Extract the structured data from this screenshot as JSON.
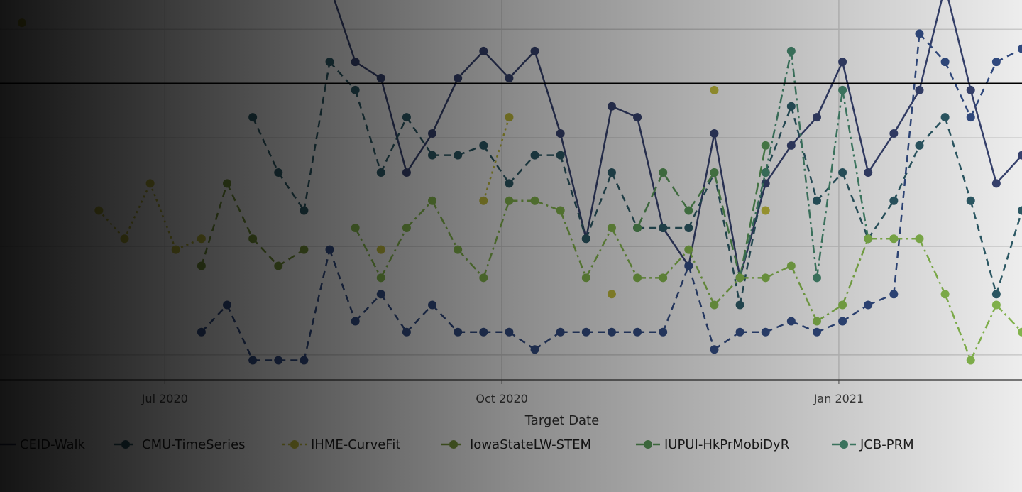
{
  "chart_data": {
    "type": "line",
    "title": "",
    "xlabel": "Target Date",
    "ylabel": "",
    "x_ticks": [
      {
        "date": "2020-07-01",
        "label": "Jul 2020"
      },
      {
        "date": "2020-10-01",
        "label": "Oct 2020"
      },
      {
        "date": "2021-01-01",
        "label": "Jan 2021"
      }
    ],
    "xlim": [
      "2020-05-17",
      "2021-02-20"
    ],
    "ylim": [
      -2.3,
      32.7
    ],
    "y_gridlines": [
      0,
      10,
      20,
      30
    ],
    "reference_line_y": 25,
    "reference_line_color": "#000000",
    "grid": true,
    "legend_position": "bottom",
    "series": [
      {
        "name": "CEID-Walk",
        "color": "#3a4675",
        "dash": "solid",
        "points": [
          [
            "2020-08-15",
            34
          ],
          [
            "2020-08-22",
            27.0
          ],
          [
            "2020-08-29",
            25.5
          ],
          [
            "2020-09-05",
            16.8
          ],
          [
            "2020-09-12",
            20.4
          ],
          [
            "2020-09-19",
            25.5
          ],
          [
            "2020-09-26",
            28.0
          ],
          [
            "2020-10-03",
            25.5
          ],
          [
            "2020-10-10",
            28.0
          ],
          [
            "2020-10-17",
            20.4
          ],
          [
            "2020-10-24",
            10.7
          ],
          [
            "2020-10-31",
            22.9
          ],
          [
            "2020-11-07",
            21.9
          ],
          [
            "2020-11-14",
            11.7
          ],
          [
            "2020-11-21",
            8.2
          ],
          [
            "2020-11-28",
            20.4
          ],
          [
            "2020-12-05",
            7.1
          ],
          [
            "2020-12-12",
            15.8
          ],
          [
            "2020-12-19",
            19.3
          ],
          [
            "2020-12-26",
            21.9
          ],
          [
            "2021-01-02",
            27.0
          ],
          [
            "2021-01-09",
            16.8
          ],
          [
            "2021-01-16",
            20.4
          ],
          [
            "2021-01-23",
            24.4
          ],
          [
            "2021-01-30",
            34
          ],
          [
            "2021-02-06",
            24.4
          ],
          [
            "2021-02-13",
            15.8
          ],
          [
            "2021-02-20",
            18.4
          ]
        ]
      },
      {
        "name": "CMU-TimeSeries",
        "color": "#2f5f6c",
        "dash": "dash",
        "points": [
          [
            "2020-07-25",
            21.9
          ],
          [
            "2020-08-01",
            16.8
          ],
          [
            "2020-08-08",
            13.3
          ],
          [
            "2020-08-15",
            27.0
          ],
          [
            "2020-08-22",
            24.4
          ],
          [
            "2020-08-29",
            16.8
          ],
          [
            "2020-09-05",
            21.9
          ],
          [
            "2020-09-12",
            18.4
          ],
          [
            "2020-09-19",
            18.4
          ],
          [
            "2020-09-26",
            19.3
          ],
          [
            "2020-10-03",
            15.8
          ],
          [
            "2020-10-10",
            18.4
          ],
          [
            "2020-10-17",
            18.4
          ],
          [
            "2020-10-24",
            10.7
          ],
          [
            "2020-10-31",
            16.8
          ],
          [
            "2020-11-07",
            11.7
          ],
          [
            "2020-11-14",
            11.7
          ],
          [
            "2020-11-21",
            11.7
          ],
          [
            "2020-11-28",
            16.8
          ],
          [
            "2020-12-05",
            4.6
          ],
          [
            "2020-12-12",
            16.8
          ],
          [
            "2020-12-19",
            22.9
          ],
          [
            "2020-12-26",
            14.2
          ],
          [
            "2021-01-02",
            16.8
          ],
          [
            "2021-01-09",
            10.7
          ],
          [
            "2021-01-16",
            14.2
          ],
          [
            "2021-01-23",
            19.3
          ],
          [
            "2021-01-30",
            21.9
          ],
          [
            "2021-02-06",
            14.2
          ],
          [
            "2021-02-13",
            5.6
          ],
          [
            "2021-02-20",
            13.3
          ]
        ]
      },
      {
        "name": "IHME-CurveFit",
        "color": "#c9c43f",
        "dash": "dot",
        "points": [
          [
            "2020-05-23",
            30.6
          ],
          [
            "2020-06-13",
            13.3
          ],
          [
            "2020-06-20",
            10.7
          ],
          [
            "2020-06-27",
            15.8
          ],
          [
            "2020-07-04",
            9.7
          ],
          [
            "2020-07-11",
            10.7
          ],
          [
            "2020-08-29",
            9.7
          ],
          [
            "2020-09-26",
            14.2
          ],
          [
            "2020-10-03",
            21.9
          ],
          [
            "2020-10-31",
            5.6
          ],
          [
            "2020-11-28",
            24.4
          ],
          [
            "2020-12-12",
            13.3
          ]
        ]
      },
      {
        "name": "IowaStateLW-STEM",
        "color": "#7a9a3c",
        "dash": "dash",
        "points": [
          [
            "2020-07-11",
            8.2
          ],
          [
            "2020-07-18",
            15.8
          ],
          [
            "2020-07-25",
            10.7
          ],
          [
            "2020-08-01",
            8.2
          ],
          [
            "2020-08-08",
            9.7
          ]
        ]
      },
      {
        "name": "IUPUI-HkPrMobiDyR",
        "color": "#5c9e5c",
        "dash": "longdash",
        "points": [
          [
            "2020-11-07",
            11.7
          ],
          [
            "2020-11-14",
            16.8
          ],
          [
            "2020-11-21",
            13.3
          ],
          [
            "2020-11-28",
            16.8
          ],
          [
            "2020-12-05",
            7.1
          ],
          [
            "2020-12-12",
            19.3
          ]
        ]
      },
      {
        "name": "JCB-PRM",
        "color": "#4a9075",
        "dash": "dashdot",
        "points": [
          [
            "2020-12-05",
            7.1
          ],
          [
            "2020-12-12",
            16.8
          ],
          [
            "2020-12-19",
            28.0
          ],
          [
            "2020-12-26",
            7.1
          ],
          [
            "2021-01-02",
            24.4
          ],
          [
            "2021-01-09",
            10.7
          ]
        ]
      },
      {
        "color": "#35508a",
        "dash": "dash",
        "points": [
          [
            "2020-07-11",
            2.1
          ],
          [
            "2020-07-18",
            4.6
          ],
          [
            "2020-07-25",
            -0.5
          ],
          [
            "2020-08-01",
            -0.5
          ],
          [
            "2020-08-08",
            -0.5
          ],
          [
            "2020-08-15",
            9.7
          ],
          [
            "2020-08-22",
            3.1
          ],
          [
            "2020-08-29",
            5.6
          ],
          [
            "2020-09-05",
            2.1
          ],
          [
            "2020-09-12",
            4.6
          ],
          [
            "2020-09-19",
            2.1
          ],
          [
            "2020-09-26",
            2.1
          ],
          [
            "2020-10-03",
            2.1
          ],
          [
            "2020-10-10",
            0.5
          ],
          [
            "2020-10-17",
            2.1
          ],
          [
            "2020-10-24",
            2.1
          ],
          [
            "2020-10-31",
            2.1
          ],
          [
            "2020-11-07",
            2.1
          ],
          [
            "2020-11-14",
            2.1
          ],
          [
            "2020-11-21",
            8.2
          ],
          [
            "2020-11-28",
            0.5
          ],
          [
            "2020-12-05",
            2.1
          ],
          [
            "2020-12-12",
            2.1
          ],
          [
            "2020-12-19",
            3.1
          ],
          [
            "2020-12-26",
            2.1
          ],
          [
            "2021-01-02",
            3.1
          ],
          [
            "2021-01-09",
            4.6
          ],
          [
            "2021-01-16",
            5.6
          ],
          [
            "2021-01-23",
            29.6
          ],
          [
            "2021-01-30",
            27.0
          ],
          [
            "2021-02-06",
            21.9
          ],
          [
            "2021-02-13",
            27.0
          ],
          [
            "2021-02-20",
            28.2
          ]
        ]
      },
      {
        "color": "#8cc152",
        "dash": "dashdot",
        "points": [
          [
            "2020-08-22",
            11.7
          ],
          [
            "2020-08-29",
            7.1
          ],
          [
            "2020-09-05",
            11.7
          ],
          [
            "2020-09-12",
            14.2
          ],
          [
            "2020-09-19",
            9.7
          ],
          [
            "2020-09-26",
            7.1
          ],
          [
            "2020-10-03",
            14.2
          ],
          [
            "2020-10-10",
            14.2
          ],
          [
            "2020-10-17",
            13.3
          ],
          [
            "2020-10-24",
            7.1
          ],
          [
            "2020-10-31",
            11.7
          ],
          [
            "2020-11-07",
            7.1
          ],
          [
            "2020-11-14",
            7.1
          ],
          [
            "2020-11-21",
            9.7
          ],
          [
            "2020-11-28",
            4.6
          ],
          [
            "2020-12-05",
            7.1
          ],
          [
            "2020-12-12",
            7.1
          ],
          [
            "2020-12-19",
            8.2
          ],
          [
            "2020-12-26",
            3.1
          ],
          [
            "2021-01-02",
            4.6
          ],
          [
            "2021-01-09",
            10.7
          ],
          [
            "2021-01-16",
            10.7
          ],
          [
            "2021-01-23",
            10.7
          ],
          [
            "2021-01-30",
            5.6
          ],
          [
            "2021-02-06",
            -0.5
          ],
          [
            "2021-02-13",
            4.6
          ],
          [
            "2021-02-20",
            2.1
          ]
        ]
      }
    ]
  }
}
